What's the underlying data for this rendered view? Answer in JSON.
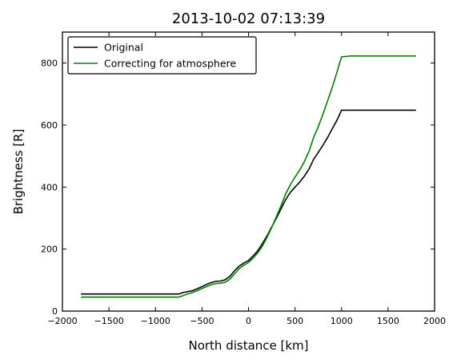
{
  "chart_data": {
    "type": "line",
    "title": "2013-10-02 07:13:39",
    "xlabel": "North distance [km]",
    "ylabel": "Brightness [R]",
    "xlim": [
      -2000,
      2000
    ],
    "ylim": [
      0,
      900
    ],
    "xticks": [
      -2000,
      -1500,
      -1000,
      -500,
      0,
      500,
      1000,
      1500,
      2000
    ],
    "yticks": [
      0,
      200,
      400,
      600,
      800
    ],
    "legend": "top-left",
    "grid": false,
    "series": [
      {
        "name": "Original",
        "color": "#000000",
        "points": [
          [
            -1800,
            55
          ],
          [
            -1200,
            55
          ],
          [
            -750,
            55
          ],
          [
            -700,
            60
          ],
          [
            -650,
            63
          ],
          [
            -600,
            66
          ],
          [
            -550,
            72
          ],
          [
            -500,
            79
          ],
          [
            -450,
            86
          ],
          [
            -400,
            92
          ],
          [
            -350,
            96
          ],
          [
            -300,
            97
          ],
          [
            -250,
            101
          ],
          [
            -200,
            112
          ],
          [
            -150,
            130
          ],
          [
            -100,
            145
          ],
          [
            -50,
            155
          ],
          [
            0,
            163
          ],
          [
            50,
            178
          ],
          [
            100,
            195
          ],
          [
            150,
            218
          ],
          [
            200,
            243
          ],
          [
            250,
            272
          ],
          [
            300,
            300
          ],
          [
            350,
            330
          ],
          [
            400,
            360
          ],
          [
            450,
            383
          ],
          [
            500,
            400
          ],
          [
            550,
            416
          ],
          [
            600,
            435
          ],
          [
            650,
            458
          ],
          [
            700,
            490
          ],
          [
            750,
            512
          ],
          [
            800,
            535
          ],
          [
            850,
            560
          ],
          [
            900,
            588
          ],
          [
            950,
            615
          ],
          [
            1000,
            648
          ],
          [
            1100,
            648
          ],
          [
            1400,
            648
          ],
          [
            1800,
            648
          ]
        ]
      },
      {
        "name": "Correcting for atmosphere",
        "color": "#008000",
        "points": [
          [
            -1800,
            45
          ],
          [
            -1200,
            45
          ],
          [
            -750,
            45
          ],
          [
            -700,
            50
          ],
          [
            -650,
            56
          ],
          [
            -600,
            60
          ],
          [
            -550,
            66
          ],
          [
            -500,
            73
          ],
          [
            -450,
            79
          ],
          [
            -400,
            85
          ],
          [
            -350,
            89
          ],
          [
            -300,
            90
          ],
          [
            -250,
            93
          ],
          [
            -200,
            103
          ],
          [
            -150,
            120
          ],
          [
            -100,
            137
          ],
          [
            -50,
            148
          ],
          [
            0,
            157
          ],
          [
            50,
            171
          ],
          [
            100,
            188
          ],
          [
            150,
            210
          ],
          [
            200,
            238
          ],
          [
            250,
            270
          ],
          [
            300,
            305
          ],
          [
            350,
            340
          ],
          [
            400,
            378
          ],
          [
            450,
            408
          ],
          [
            500,
            432
          ],
          [
            550,
            455
          ],
          [
            600,
            482
          ],
          [
            650,
            515
          ],
          [
            700,
            560
          ],
          [
            750,
            595
          ],
          [
            800,
            635
          ],
          [
            850,
            678
          ],
          [
            900,
            722
          ],
          [
            950,
            770
          ],
          [
            1000,
            820
          ],
          [
            1100,
            823
          ],
          [
            1400,
            823
          ],
          [
            1800,
            823
          ]
        ]
      }
    ]
  }
}
